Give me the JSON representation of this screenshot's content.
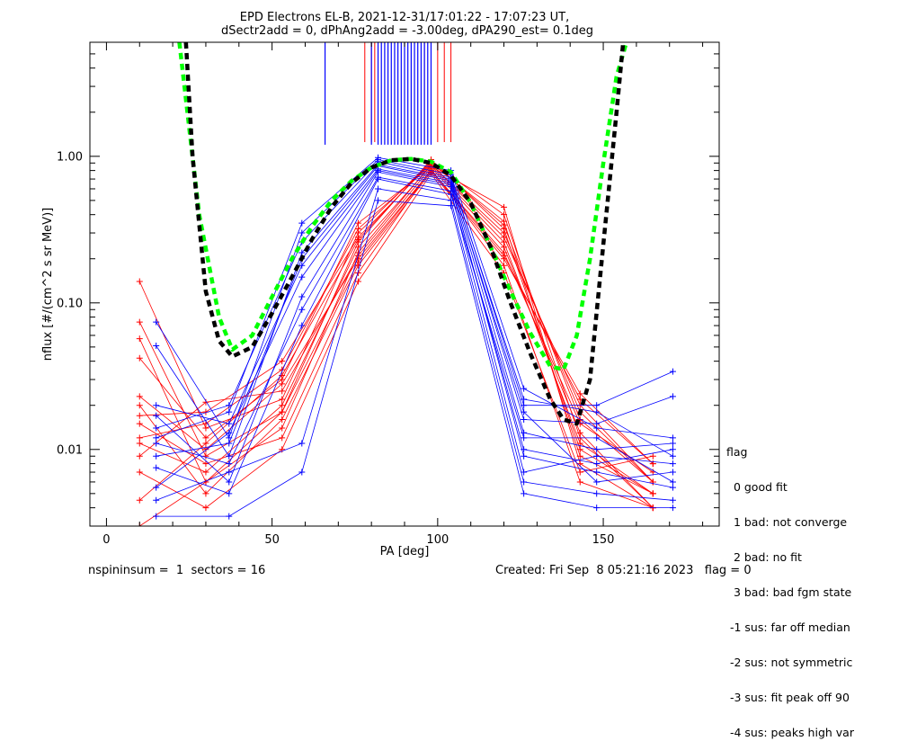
{
  "chart_data": {
    "type": "line",
    "title_lines": [
      "EPD Electrons EL-B, 2021-12-31/17:01:22 - 17:07:23 UT,",
      "dSectr2add = 0, dPhAng2add = -3.00deg, dPA290_est=   0.1deg"
    ],
    "xlabel": "PA [deg]",
    "ylabel": "nflux [#/(cm^2 s sr MeV)]",
    "xlim": [
      -5,
      185
    ],
    "ylim": [
      0.003,
      6.0
    ],
    "y_scale": "log",
    "x_ticks": [
      0,
      50,
      100,
      150
    ],
    "x_tick_labels": [
      "0",
      "50",
      "100",
      "150"
    ],
    "y_ticks": [
      0.01,
      0.1,
      1.0
    ],
    "y_tick_labels": [
      "0.01",
      "0.10",
      "1.00"
    ],
    "sector_pa_red": [
      10,
      30,
      53,
      76,
      98,
      120,
      143,
      165
    ],
    "sector_pa_blue": [
      15,
      37,
      59,
      82,
      104,
      126,
      148,
      171
    ],
    "series": [
      {
        "color": "#ff0000",
        "profiles": [
          [
            0.14,
            0.014,
            0.022,
            0.3,
            0.92,
            0.4,
            0.012,
            0.004
          ],
          [
            0.074,
            0.009,
            0.018,
            0.26,
            0.95,
            0.32,
            0.01,
            0.005
          ],
          [
            0.057,
            0.006,
            0.014,
            0.22,
            0.88,
            0.28,
            0.02,
            0.006
          ],
          [
            0.042,
            0.012,
            0.03,
            0.35,
            0.85,
            0.45,
            0.008,
            0.004
          ],
          [
            0.023,
            0.01,
            0.028,
            0.2,
            0.8,
            0.22,
            0.015,
            0.007
          ],
          [
            0.02,
            0.005,
            0.016,
            0.18,
            0.78,
            0.2,
            0.024,
            0.008
          ],
          [
            0.017,
            0.018,
            0.04,
            0.28,
            0.9,
            0.36,
            0.009,
            0.005
          ],
          [
            0.015,
            0.008,
            0.012,
            0.16,
            0.82,
            0.18,
            0.006,
            0.004
          ],
          [
            0.012,
            0.015,
            0.035,
            0.32,
            0.88,
            0.3,
            0.018,
            0.006
          ],
          [
            0.011,
            0.007,
            0.02,
            0.24,
            0.86,
            0.26,
            0.011,
            0.005
          ],
          [
            0.009,
            0.021,
            0.025,
            0.21,
            0.84,
            0.24,
            0.013,
            0.004
          ],
          [
            0.007,
            0.004,
            0.01,
            0.14,
            0.76,
            0.16,
            0.007,
            0.009
          ],
          [
            0.0045,
            0.011,
            0.032,
            0.27,
            0.92,
            0.34,
            0.016,
            0.006
          ],
          [
            0.003,
            0.006,
            0.018,
            0.19,
            0.8,
            0.21,
            0.022,
            0.008
          ]
        ]
      },
      {
        "color": "#0000ff",
        "profiles": [
          [
            0.074,
            0.012,
            0.3,
            0.95,
            0.75,
            0.02,
            0.02,
            0.034
          ],
          [
            0.051,
            0.009,
            0.22,
            0.88,
            0.7,
            0.016,
            0.015,
            0.023
          ],
          [
            0.02,
            0.015,
            0.18,
            0.82,
            0.66,
            0.013,
            0.01,
            0.011
          ],
          [
            0.017,
            0.006,
            0.11,
            0.78,
            0.62,
            0.01,
            0.008,
            0.01
          ],
          [
            0.014,
            0.02,
            0.26,
            0.92,
            0.72,
            0.022,
            0.018,
            0.009
          ],
          [
            0.011,
            0.008,
            0.09,
            0.72,
            0.58,
            0.007,
            0.009,
            0.008
          ],
          [
            0.009,
            0.011,
            0.2,
            0.86,
            0.68,
            0.018,
            0.006,
            0.007
          ],
          [
            0.0075,
            0.005,
            0.07,
            0.7,
            0.55,
            0.012,
            0.012,
            0.006
          ],
          [
            0.0055,
            0.013,
            0.15,
            0.8,
            0.64,
            0.009,
            0.007,
            0.0055
          ],
          [
            0.0045,
            0.007,
            0.011,
            0.6,
            0.5,
            0.006,
            0.005,
            0.0045
          ],
          [
            0.0035,
            0.0035,
            0.007,
            0.5,
            0.46,
            0.005,
            0.004,
            0.004
          ],
          [
            0.012,
            0.018,
            0.35,
            0.98,
            0.8,
            0.026,
            0.014,
            0.012
          ]
        ]
      },
      {
        "color": "#00ff00",
        "style": "dashed",
        "x": [
          22,
          28,
          34,
          38,
          44,
          50,
          56,
          62,
          68,
          74,
          80,
          86,
          92,
          98,
          104,
          110,
          116,
          122,
          128,
          134,
          138,
          142,
          146,
          150,
          154,
          157
        ],
        "y": [
          6.0,
          0.4,
          0.08,
          0.048,
          0.06,
          0.11,
          0.2,
          0.33,
          0.5,
          0.68,
          0.84,
          0.94,
          0.96,
          0.92,
          0.78,
          0.48,
          0.24,
          0.12,
          0.062,
          0.037,
          0.035,
          0.06,
          0.2,
          0.9,
          3.5,
          6.0
        ]
      },
      {
        "color": "#000000",
        "style": "dashed",
        "x": [
          24,
          26,
          30,
          34,
          38,
          44,
          50,
          56,
          62,
          68,
          74,
          80,
          86,
          92,
          98,
          104,
          110,
          116,
          122,
          128,
          134,
          138,
          142,
          146,
          150,
          154,
          156
        ],
        "y": [
          6.0,
          1.0,
          0.12,
          0.055,
          0.043,
          0.05,
          0.085,
          0.15,
          0.27,
          0.45,
          0.66,
          0.84,
          0.94,
          0.96,
          0.9,
          0.74,
          0.48,
          0.24,
          0.1,
          0.045,
          0.022,
          0.016,
          0.015,
          0.03,
          0.25,
          2.0,
          6.0
        ]
      }
    ],
    "spikes_blue_x": [
      66,
      80,
      82,
      83,
      84,
      85,
      86,
      87,
      88,
      89,
      90,
      91,
      92,
      93,
      94,
      95,
      96,
      97,
      98
    ],
    "spikes_red_x": [
      78,
      80,
      81,
      96,
      100,
      102,
      104
    ],
    "legend_title": "flag",
    "legend_items": [
      "  0 good fit",
      "  1 bad: not converge",
      "  2 bad: no fit",
      "  3 bad: bad fgm state",
      " -1 sus: far off median",
      " -2 sus: not symmetric",
      " -3 sus: fit peak off 90",
      " -4 sus: peaks high var"
    ],
    "footer_left": "nspininsum =  1  sectors = 16",
    "footer_right": "Created: Fri Sep  8 05:21:16 2023   flag = 0"
  }
}
